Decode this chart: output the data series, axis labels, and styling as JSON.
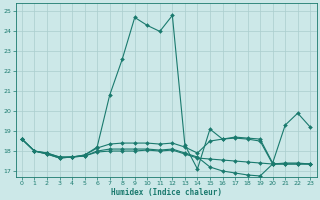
{
  "xlabel": "Humidex (Indice chaleur)",
  "xlim": [
    -0.5,
    23.5
  ],
  "ylim": [
    16.7,
    25.4
  ],
  "xticks": [
    0,
    1,
    2,
    3,
    4,
    5,
    6,
    7,
    8,
    9,
    10,
    11,
    12,
    13,
    14,
    15,
    16,
    17,
    18,
    19,
    20,
    21,
    22,
    23
  ],
  "yticks": [
    17,
    18,
    19,
    20,
    21,
    22,
    23,
    24,
    25
  ],
  "bg_color": "#cce8e8",
  "grid_color": "#aacece",
  "line_color": "#1a7a6e",
  "line1": [
    18.6,
    18.0,
    17.9,
    17.7,
    17.7,
    17.8,
    18.2,
    20.8,
    22.6,
    24.7,
    24.3,
    24.0,
    24.8,
    18.3,
    17.1,
    19.1,
    18.6,
    18.7,
    18.65,
    18.6,
    17.4,
    19.3,
    19.9,
    19.2
  ],
  "line2": [
    18.6,
    18.0,
    17.9,
    17.7,
    17.7,
    17.8,
    18.15,
    18.35,
    18.4,
    18.4,
    18.4,
    18.35,
    18.4,
    18.2,
    17.9,
    18.5,
    18.6,
    18.65,
    18.6,
    18.5,
    17.35,
    17.4,
    17.4,
    17.35
  ],
  "line3": [
    18.6,
    18.0,
    17.85,
    17.65,
    17.7,
    17.75,
    18.0,
    18.1,
    18.1,
    18.1,
    18.1,
    18.05,
    18.1,
    17.9,
    17.7,
    17.2,
    17.0,
    16.9,
    16.8,
    16.75,
    17.35,
    17.35,
    17.35,
    17.35
  ],
  "line4": [
    18.6,
    18.0,
    17.85,
    17.65,
    17.7,
    17.75,
    17.95,
    18.0,
    18.0,
    18.0,
    18.05,
    18.0,
    18.05,
    17.85,
    17.65,
    17.6,
    17.55,
    17.5,
    17.45,
    17.4,
    17.35,
    17.35,
    17.35,
    17.35
  ]
}
